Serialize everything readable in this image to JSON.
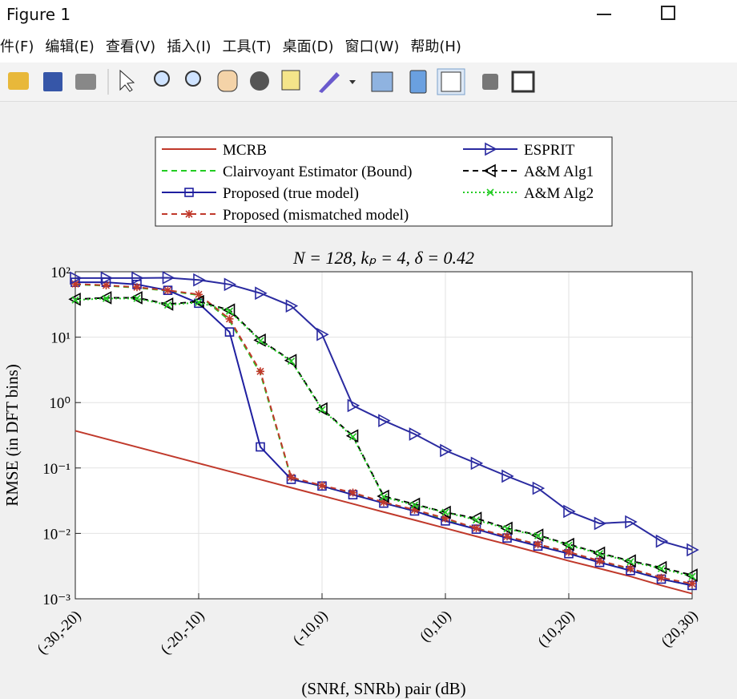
{
  "window": {
    "title": "Figure 1",
    "menu": [
      "件(F)",
      "编辑(E)",
      "查看(V)",
      "插入(I)",
      "工具(T)",
      "桌面(D)",
      "窗口(W)",
      "帮助(H)"
    ]
  },
  "chart_data": {
    "type": "line",
    "title": "N = 128, kₚ = 4, δ = 0.42",
    "xlabel": "(SNRf, SNRb) pair (dB)",
    "ylabel": "RMSE (in DFT bins)",
    "x": [
      -30,
      -27.5,
      -25,
      -22.5,
      -20,
      -17.5,
      -15,
      -12.5,
      -10,
      -7.5,
      -5,
      -2.5,
      0,
      2.5,
      5,
      7.5,
      10,
      12.5,
      15,
      17.5,
      20
    ],
    "xlim": [
      -30,
      20
    ],
    "xticks": [
      {
        "value": -30,
        "label": "(-30,-20)"
      },
      {
        "value": -20,
        "label": "(-20,-10)"
      },
      {
        "value": -10,
        "label": "(-10,0)"
      },
      {
        "value": 0,
        "label": "(0,10)"
      },
      {
        "value": 10,
        "label": "(10,20)"
      },
      {
        "value": 20,
        "label": "(20,30)"
      }
    ],
    "ylim": [
      0.001,
      100
    ],
    "yscale": "log",
    "yticks": [
      {
        "value": 0.001,
        "label": "10⁻³"
      },
      {
        "value": 0.01,
        "label": "10⁻²"
      },
      {
        "value": 0.1,
        "label": "10⁻¹"
      },
      {
        "value": 1,
        "label": "10⁰"
      },
      {
        "value": 10,
        "label": "10¹"
      },
      {
        "value": 100,
        "label": "10²"
      }
    ],
    "grid": true,
    "legend": "top",
    "series": [
      {
        "name": "MCRB",
        "color": "#c0392b",
        "dash": "solid",
        "marker": "none",
        "values": [
          0.37,
          0.278,
          0.209,
          0.157,
          0.118,
          0.0886,
          0.0666,
          0.05,
          0.0376,
          0.0283,
          0.0212,
          0.016,
          0.012,
          0.009,
          0.0068,
          0.0051,
          0.0038,
          0.0029,
          0.0022,
          0.0016,
          0.0012
        ]
      },
      {
        "name": "Clairvoyant Estimator (Bound)",
        "color": "#22cc22",
        "dash": "dashed",
        "marker": "none",
        "values": [
          64,
          61,
          57,
          51,
          44,
          18,
          2.8,
          0.07,
          0.052,
          0.04,
          0.029,
          0.022,
          0.016,
          0.012,
          0.0088,
          0.0066,
          0.005,
          0.0037,
          0.0028,
          0.002,
          0.0016
        ]
      },
      {
        "name": "Proposed (true model)",
        "color": "#1f1fa0",
        "dash": "solid",
        "marker": "square",
        "values": [
          69,
          69,
          64,
          52,
          33,
          12,
          0.21,
          0.067,
          0.053,
          0.039,
          0.029,
          0.022,
          0.0155,
          0.0116,
          0.0085,
          0.0064,
          0.0049,
          0.0036,
          0.0027,
          0.002,
          0.0016
        ]
      },
      {
        "name": "Proposed (mismatched model)",
        "color": "#c0392b",
        "dash": "dashed",
        "marker": "star",
        "values": [
          65,
          62,
          58,
          52,
          45,
          19,
          3,
          0.072,
          0.054,
          0.042,
          0.03,
          0.023,
          0.017,
          0.012,
          0.009,
          0.0068,
          0.0052,
          0.0038,
          0.0029,
          0.0021,
          0.0017
        ]
      },
      {
        "name": "ESPRIT",
        "color": "#2a2aa0",
        "dash": "solid",
        "marker": "triangle-right",
        "values": [
          80,
          80,
          80,
          81,
          75,
          64,
          47,
          30,
          11,
          0.9,
          0.53,
          0.33,
          0.185,
          0.118,
          0.075,
          0.049,
          0.0217,
          0.0142,
          0.015,
          0.0076,
          0.0056
        ]
      },
      {
        "name": "A&M Alg1",
        "color": "#000000",
        "dash": "dashed",
        "marker": "triangle-left",
        "values": [
          38,
          40,
          40,
          32,
          35,
          26,
          9,
          4.4,
          0.8,
          0.31,
          0.037,
          0.028,
          0.021,
          0.017,
          0.012,
          0.0094,
          0.0068,
          0.005,
          0.0038,
          0.003,
          0.0023
        ]
      },
      {
        "name": "A&M Alg2",
        "color": "#22cc22",
        "dash": "dotted",
        "marker": "x",
        "values": [
          37,
          39,
          39,
          31,
          34,
          25,
          8.8,
          4.3,
          0.78,
          0.3,
          0.036,
          0.027,
          0.021,
          0.016,
          0.0118,
          0.0092,
          0.0066,
          0.0049,
          0.0037,
          0.0029,
          0.0022
        ]
      }
    ]
  }
}
